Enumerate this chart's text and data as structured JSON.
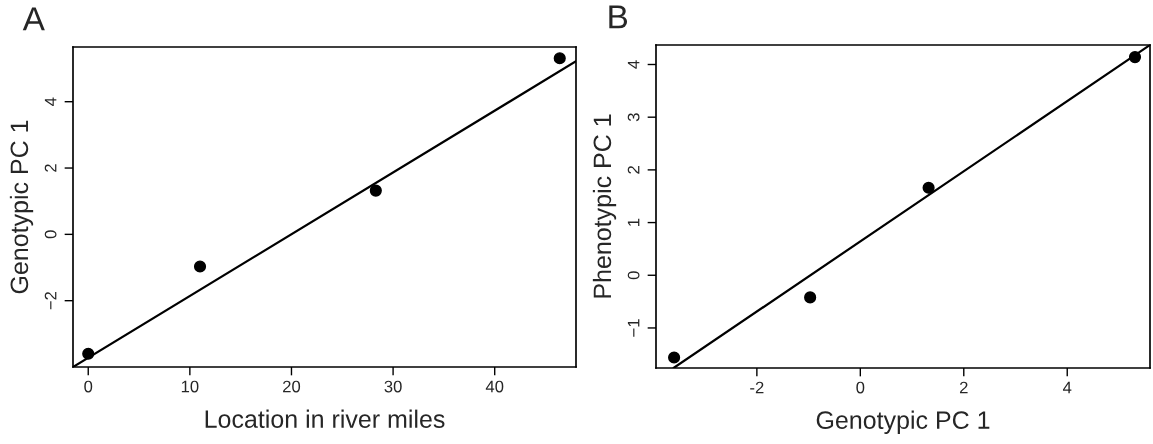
{
  "chart_data": [
    {
      "type": "scatter",
      "title": "A",
      "xlabel": "Location in river miles",
      "ylabel": "Genotypic PC 1",
      "marker": "circle",
      "grid": false,
      "xlim": [
        -1.5,
        48
      ],
      "ylim": [
        -4.0,
        5.65
      ],
      "xticks": [
        0,
        10,
        20,
        30,
        40
      ],
      "yticks": [
        -2,
        0,
        2,
        4
      ],
      "series": [
        {
          "color": "#000000",
          "x": [
            0,
            11,
            28.3,
            46.4
          ],
          "values": [
            -3.6,
            -0.97,
            1.32,
            5.31
          ]
        },
        {
          "type": "line",
          "color": "#000000",
          "marker": "none",
          "x": [
            -1.5,
            48
          ],
          "values": [
            -4.0,
            5.22
          ]
        }
      ]
    },
    {
      "type": "scatter",
      "title": "B",
      "xlabel": "Genotypic PC 1",
      "ylabel": "Phenotypic PC 1",
      "marker": "circle",
      "grid": false,
      "xlim": [
        -3.95,
        5.6
      ],
      "ylim": [
        -1.76,
        4.37
      ],
      "xticks": [
        {
          "value": -2,
          "label": "-2"
        },
        0,
        2,
        4
      ],
      "yticks": [
        -1,
        0,
        1,
        2,
        3,
        4
      ],
      "series": [
        {
          "color": "#000000",
          "x": [
            -3.6,
            -0.97,
            1.32,
            5.31
          ],
          "values": [
            -1.56,
            -0.42,
            1.66,
            4.14
          ]
        },
        {
          "type": "line",
          "color": "#000000",
          "marker": "none",
          "x": [
            -3.61,
            5.6
          ],
          "values": [
            -1.76,
            4.37
          ]
        }
      ]
    }
  ]
}
